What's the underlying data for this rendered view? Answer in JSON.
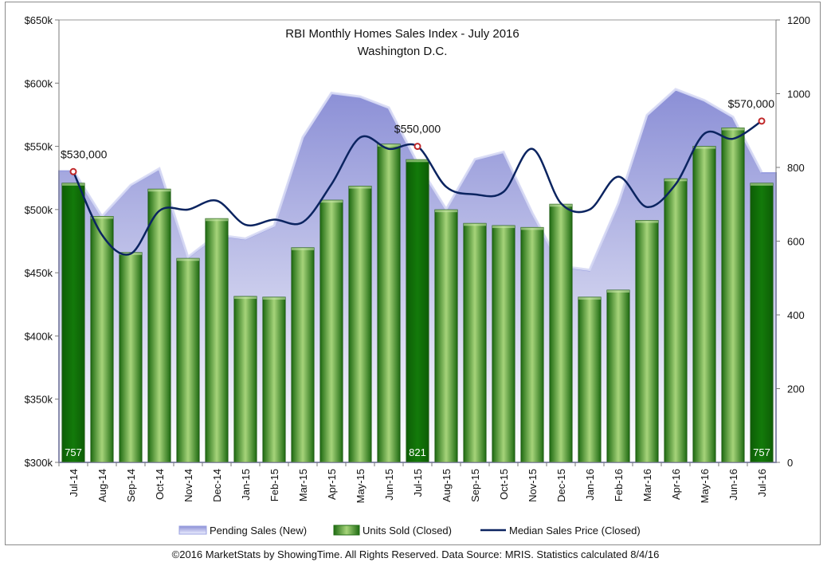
{
  "chart_data": {
    "type": "bar",
    "title": "RBI Monthly Homes Sales Index  -  July 2016",
    "subtitle": "Washington D.C.",
    "categories": [
      "Jul-14",
      "Aug-14",
      "Sep-14",
      "Oct-14",
      "Nov-14",
      "Dec-14",
      "Jan-15",
      "Feb-15",
      "Mar-15",
      "Apr-15",
      "May-15",
      "Jun-15",
      "Jul-15",
      "Aug-15",
      "Sep-15",
      "Oct-15",
      "Nov-15",
      "Dec-15",
      "Jan-16",
      "Feb-16",
      "Mar-16",
      "Apr-16",
      "May-16",
      "Jun-16",
      "Jul-16"
    ],
    "y_left": {
      "ylim": [
        300000,
        650000
      ],
      "ticks": [
        "$300k",
        "$350k",
        "$400k",
        "$450k",
        "$500k",
        "$550k",
        "$600k",
        "$650k"
      ]
    },
    "y_right": {
      "ylim": [
        0,
        1200
      ],
      "ticks": [
        "0",
        "200",
        "400",
        "600",
        "800",
        "1000",
        "1200"
      ]
    },
    "grid": false,
    "legend_position": "bottom",
    "series": [
      {
        "name": "Pending Sales (New)",
        "type": "area",
        "axis": "right",
        "values": [
          790,
          665,
          750,
          795,
          555,
          615,
          605,
          640,
          880,
          1000,
          990,
          960,
          810,
          685,
          820,
          840,
          675,
          530,
          520,
          700,
          940,
          1010,
          980,
          935,
          785
        ]
      },
      {
        "name": "Units Sold (Closed)",
        "type": "bar",
        "axis": "right",
        "values": [
          757,
          667,
          569,
          741,
          553,
          661,
          450,
          448,
          582,
          711,
          749,
          863,
          821,
          685,
          648,
          642,
          637,
          700,
          448,
          467,
          656,
          769,
          857,
          907,
          757
        ]
      },
      {
        "name": "Median Sales Price (Closed)",
        "type": "line",
        "axis": "left",
        "values": [
          530000,
          480000,
          465000,
          499000,
          500000,
          507000,
          488000,
          492000,
          490000,
          520000,
          557000,
          548000,
          550000,
          518000,
          512000,
          514000,
          548000,
          505000,
          500000,
          526000,
          502000,
          520000,
          560000,
          556000,
          570000
        ]
      }
    ],
    "annotations": {
      "price_labels": [
        {
          "index": 0,
          "text": "$530,000"
        },
        {
          "index": 12,
          "text": "$550,000"
        },
        {
          "index": 24,
          "text": "$570,000"
        }
      ],
      "bar_labels": [
        {
          "index": 0,
          "text": "757"
        },
        {
          "index": 12,
          "text": "821"
        },
        {
          "index": 24,
          "text": "757"
        }
      ]
    }
  },
  "footer": "©2016 MarketStats by ShowingTime. All Rights Reserved. Data Source: MRIS. Statistics calculated 8/4/16",
  "colors": {
    "area_top": "#8b8fd6",
    "area_bottom": "#ffffff",
    "area_edge": "#9aa0e0",
    "bar_dark": "#1f6b12",
    "bar_light": "#9fcf6f",
    "bar_highlight": "#106a08",
    "line": "#0b2460",
    "marker": "#c0282a"
  }
}
